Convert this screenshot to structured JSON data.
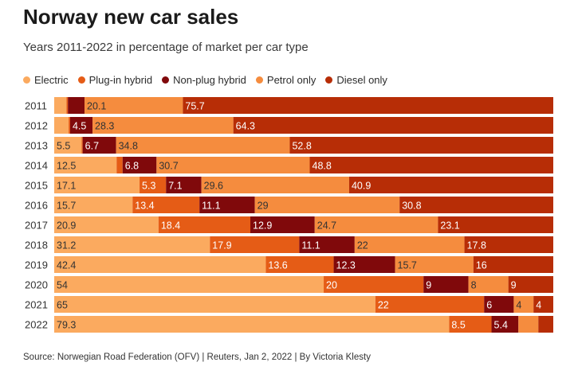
{
  "chart_data": {
    "type": "bar",
    "orientation": "horizontal-stacked-100",
    "title": "Norway new car sales",
    "subtitle": "Years 2011-2022 in percentage of market per car type",
    "categories": [
      "2011",
      "2012",
      "2013",
      "2014",
      "2015",
      "2016",
      "2017",
      "2018",
      "2019",
      "2020",
      "2021",
      "2022"
    ],
    "series": [
      {
        "name": "Electric",
        "color": "#fbaa5f",
        "values": [
          2.5,
          2.9,
          5.5,
          12.5,
          17.1,
          15.7,
          20.9,
          31.2,
          42.4,
          54,
          65,
          79.3
        ],
        "labels": [
          "",
          "",
          "5.5",
          "12.5",
          "17.1",
          "15.7",
          "20.9",
          "31.2",
          "42.4",
          "54",
          "65",
          "79.3"
        ]
      },
      {
        "name": "Plug-in hybrid",
        "color": "#e55c16",
        "values": [
          0.3,
          0.3,
          0.2,
          1.2,
          5.3,
          13.4,
          18.4,
          17.9,
          13.6,
          20,
          22,
          8.5
        ],
        "labels": [
          "",
          "",
          "",
          "",
          "5.3",
          "13.4",
          "18.4",
          "17.9",
          "13.6",
          "20",
          "22",
          "8.5"
        ]
      },
      {
        "name": "Non-plug hybrid",
        "color": "#80090b",
        "values": [
          3.4,
          4.5,
          6.7,
          6.8,
          7.1,
          11.1,
          12.9,
          11.1,
          12.3,
          9,
          6,
          5.4
        ],
        "labels": [
          "",
          "4.5",
          "6.7",
          "6.8",
          "7.1",
          "11.1",
          "12.9",
          "11.1",
          "12.3",
          "9",
          "6",
          "5.4"
        ]
      },
      {
        "name": "Petrol only",
        "color": "#f58c3e",
        "values": [
          20.1,
          28.3,
          34.8,
          30.7,
          29.6,
          29,
          24.7,
          22,
          15.7,
          8,
          4,
          4
        ],
        "labels": [
          "20.1",
          "28.3",
          "34.8",
          "30.7",
          "29.6",
          "29",
          "24.7",
          "22",
          "15.7",
          "8",
          "4",
          ""
        ]
      },
      {
        "name": "Diesel only",
        "color": "#b72d06",
        "values": [
          75.7,
          64.3,
          52.8,
          48.8,
          40.9,
          30.8,
          23.1,
          17.8,
          16,
          9,
          4,
          3
        ],
        "labels": [
          "75.7",
          "64.3",
          "52.8",
          "48.8",
          "40.9",
          "30.8",
          "23.1",
          "17.8",
          "16",
          "9",
          "4",
          ""
        ]
      }
    ],
    "xlim": [
      0,
      100
    ],
    "grid": false,
    "legend": "top-left"
  },
  "source": "Source: Norwegian Road Federation (OFV) | Reuters, Jan 2, 2022 | By Victoria Klesty"
}
